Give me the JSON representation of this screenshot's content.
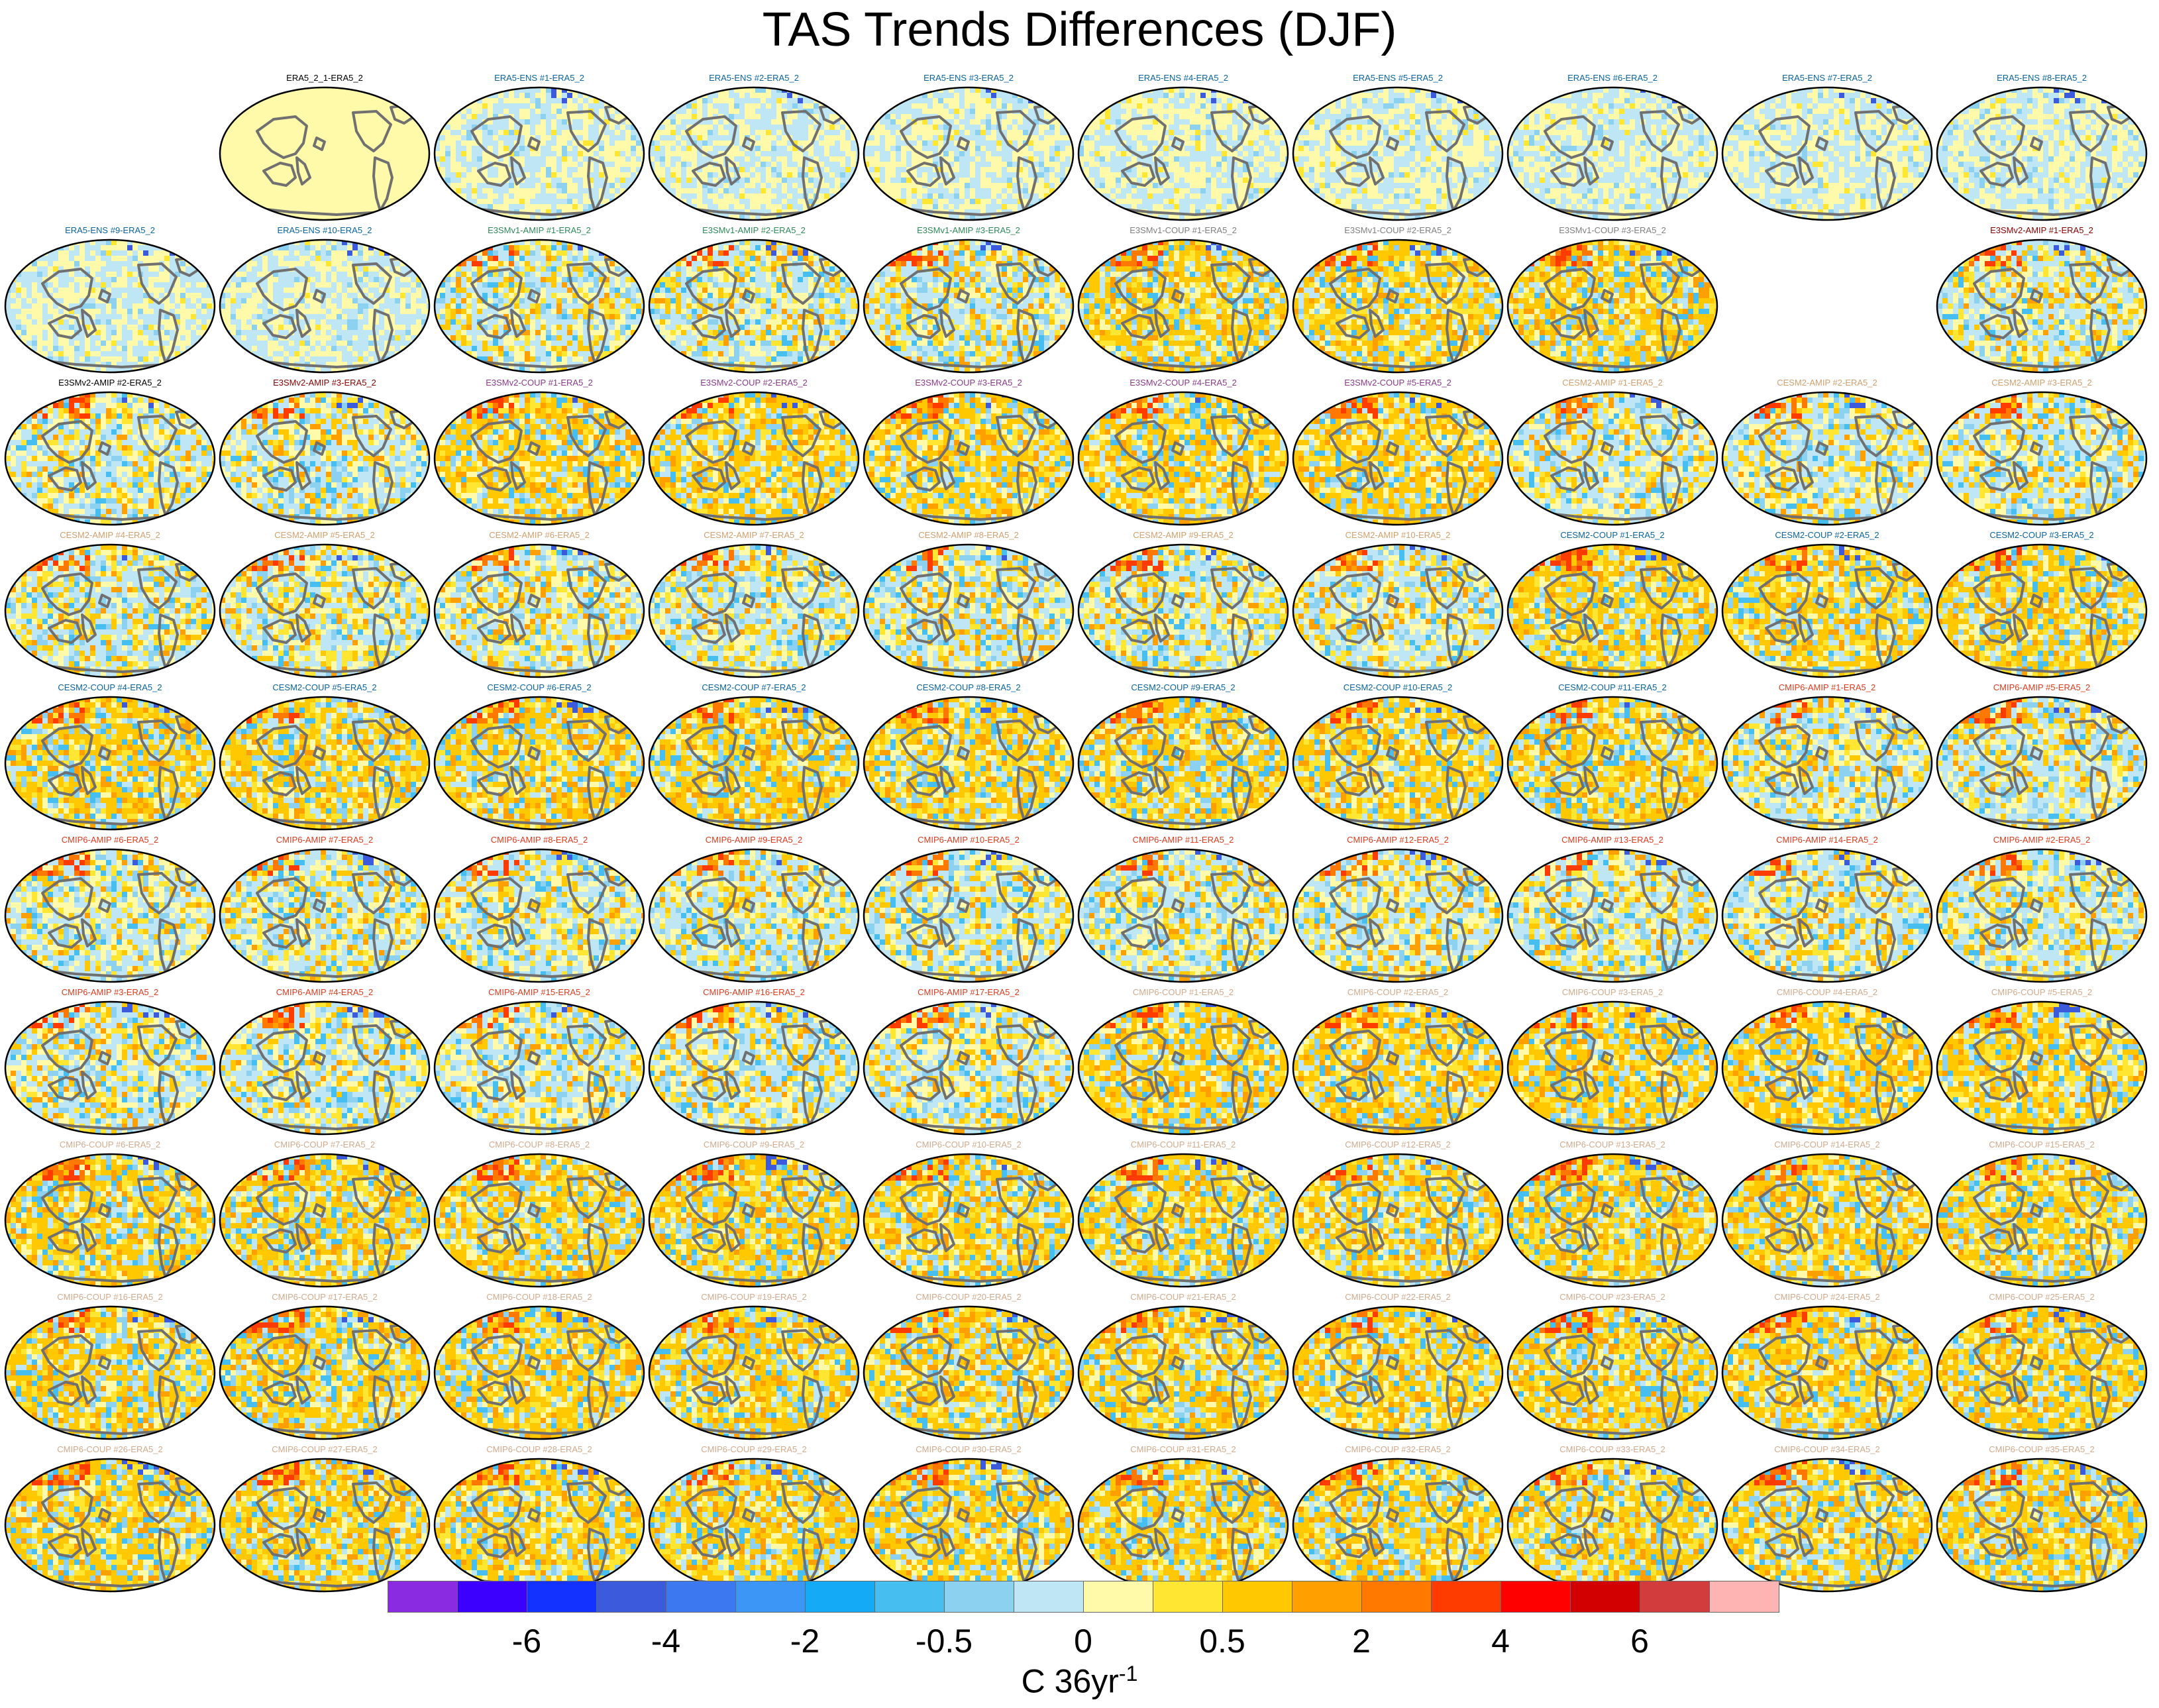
{
  "title": "TAS Trends Differences (DJF)",
  "chart_data": {
    "type": "heatmap",
    "title": "TAS Trends Differences (DJF)",
    "colorbar": {
      "tick_labels": [
        "-6",
        "-4",
        "-2",
        "-0.5",
        "0",
        "0.5",
        "2",
        "4",
        "6"
      ],
      "units_base": "C 36yr",
      "units_sup": "-1",
      "colors": [
        "#8a2be2",
        "#3c00ff",
        "#1432ff",
        "#3c5adc",
        "#3c78f0",
        "#3c96f5",
        "#14aaf5",
        "#46bef0",
        "#8cd2f0",
        "#bee6f5",
        "#fffaaa",
        "#ffe632",
        "#ffc800",
        "#ffa000",
        "#ff7800",
        "#ff3c00",
        "#ff0000",
        "#d20000",
        "#d23c3c",
        "#ffb4b4"
      ]
    },
    "panels": [
      {
        "row": 0,
        "col": 1,
        "label": "ERA5_2_1-ERA5_2",
        "label_color": "#000000",
        "style": "zero"
      },
      {
        "row": 0,
        "col": 2,
        "label": "ERA5-ENS    #1-ERA5_2",
        "label_color": "#0a64a0",
        "style": "ens"
      },
      {
        "row": 0,
        "col": 3,
        "label": "ERA5-ENS    #2-ERA5_2",
        "label_color": "#0a64a0",
        "style": "ens"
      },
      {
        "row": 0,
        "col": 4,
        "label": "ERA5-ENS    #3-ERA5_2",
        "label_color": "#0a64a0",
        "style": "ens"
      },
      {
        "row": 0,
        "col": 5,
        "label": "ERA5-ENS    #4-ERA5_2",
        "label_color": "#0a64a0",
        "style": "ens"
      },
      {
        "row": 0,
        "col": 6,
        "label": "ERA5-ENS    #5-ERA5_2",
        "label_color": "#0a64a0",
        "style": "ens"
      },
      {
        "row": 0,
        "col": 7,
        "label": "ERA5-ENS    #6-ERA5_2",
        "label_color": "#0a64a0",
        "style": "ens"
      },
      {
        "row": 0,
        "col": 8,
        "label": "ERA5-ENS    #7-ERA5_2",
        "label_color": "#0a64a0",
        "style": "ens"
      },
      {
        "row": 0,
        "col": 9,
        "label": "ERA5-ENS    #8-ERA5_2",
        "label_color": "#0a64a0",
        "style": "ens"
      },
      {
        "row": 1,
        "col": 0,
        "label": "ERA5-ENS    #9-ERA5_2",
        "label_color": "#0a64a0",
        "style": "ens"
      },
      {
        "row": 1,
        "col": 1,
        "label": "ERA5-ENS    #10-ERA5_2",
        "label_color": "#0a64a0",
        "style": "ens"
      },
      {
        "row": 1,
        "col": 2,
        "label": "E3SMv1-AMIP #1-ERA5_2",
        "label_color": "#2e8b57",
        "style": "amip"
      },
      {
        "row": 1,
        "col": 3,
        "label": "E3SMv1-AMIP #2-ERA5_2",
        "label_color": "#2e8b57",
        "style": "amip"
      },
      {
        "row": 1,
        "col": 4,
        "label": "E3SMv1-AMIP #3-ERA5_2",
        "label_color": "#2e8b57",
        "style": "amip"
      },
      {
        "row": 1,
        "col": 5,
        "label": "E3SMv1-COUP #1-ERA5_2",
        "label_color": "#808080",
        "style": "coup"
      },
      {
        "row": 1,
        "col": 6,
        "label": "E3SMv1-COUP #2-ERA5_2",
        "label_color": "#808080",
        "style": "coup"
      },
      {
        "row": 1,
        "col": 7,
        "label": "E3SMv1-COUP #3-ERA5_2",
        "label_color": "#808080",
        "style": "coup"
      },
      {
        "row": 1,
        "col": 9,
        "label": "E3SMv2-AMIP #1-ERA5_2",
        "label_color": "#8b0000",
        "style": "amip"
      },
      {
        "row": 2,
        "col": 0,
        "label": "E3SMv2-AMIP #2-ERA5_2",
        "label_color": "#000000",
        "style": "amip"
      },
      {
        "row": 2,
        "col": 1,
        "label": "E3SMv2-AMIP #3-ERA5_2",
        "label_color": "#8b0000",
        "style": "amip"
      },
      {
        "row": 2,
        "col": 2,
        "label": "E3SMv2-COUP #1-ERA5_2",
        "label_color": "#8b3a8b",
        "style": "coup"
      },
      {
        "row": 2,
        "col": 3,
        "label": "E3SMv2-COUP #2-ERA5_2",
        "label_color": "#8b3a8b",
        "style": "coup"
      },
      {
        "row": 2,
        "col": 4,
        "label": "E3SMv2-COUP #3-ERA5_2",
        "label_color": "#8b3a8b",
        "style": "coup"
      },
      {
        "row": 2,
        "col": 5,
        "label": "E3SMv2-COUP #4-ERA5_2",
        "label_color": "#8b3a8b",
        "style": "coup"
      },
      {
        "row": 2,
        "col": 6,
        "label": "E3SMv2-COUP #5-ERA5_2",
        "label_color": "#8b3a8b",
        "style": "coup"
      },
      {
        "row": 2,
        "col": 7,
        "label": "CESM2-AMIP  #1-ERA5_2",
        "label_color": "#d2a06e",
        "style": "amip"
      },
      {
        "row": 2,
        "col": 8,
        "label": "CESM2-AMIP  #2-ERA5_2",
        "label_color": "#d2a06e",
        "style": "amip"
      },
      {
        "row": 2,
        "col": 9,
        "label": "CESM2-AMIP  #3-ERA5_2",
        "label_color": "#d2a06e",
        "style": "amip"
      },
      {
        "row": 3,
        "col": 0,
        "label": "CESM2-AMIP  #4-ERA5_2",
        "label_color": "#d2a06e",
        "style": "amip"
      },
      {
        "row": 3,
        "col": 1,
        "label": "CESM2-AMIP  #5-ERA5_2",
        "label_color": "#d2a06e",
        "style": "amip"
      },
      {
        "row": 3,
        "col": 2,
        "label": "CESM2-AMIP  #6-ERA5_2",
        "label_color": "#d2a06e",
        "style": "amip"
      },
      {
        "row": 3,
        "col": 3,
        "label": "CESM2-AMIP  #7-ERA5_2",
        "label_color": "#d2a06e",
        "style": "amip"
      },
      {
        "row": 3,
        "col": 4,
        "label": "CESM2-AMIP  #8-ERA5_2",
        "label_color": "#d2a06e",
        "style": "amip"
      },
      {
        "row": 3,
        "col": 5,
        "label": "CESM2-AMIP  #9-ERA5_2",
        "label_color": "#d2a06e",
        "style": "amip"
      },
      {
        "row": 3,
        "col": 6,
        "label": "CESM2-AMIP  #10-ERA5_2",
        "label_color": "#d2a06e",
        "style": "amip"
      },
      {
        "row": 3,
        "col": 7,
        "label": "CESM2-COUP  #1-ERA5_2",
        "label_color": "#0a64a0",
        "style": "coup"
      },
      {
        "row": 3,
        "col": 8,
        "label": "CESM2-COUP  #2-ERA5_2",
        "label_color": "#0a64a0",
        "style": "coup"
      },
      {
        "row": 3,
        "col": 9,
        "label": "CESM2-COUP  #3-ERA5_2",
        "label_color": "#0a64a0",
        "style": "coup"
      },
      {
        "row": 4,
        "col": 0,
        "label": "CESM2-COUP  #4-ERA5_2",
        "label_color": "#0a64a0",
        "style": "coup"
      },
      {
        "row": 4,
        "col": 1,
        "label": "CESM2-COUP  #5-ERA5_2",
        "label_color": "#0a64a0",
        "style": "coup"
      },
      {
        "row": 4,
        "col": 2,
        "label": "CESM2-COUP  #6-ERA5_2",
        "label_color": "#0a64a0",
        "style": "coup"
      },
      {
        "row": 4,
        "col": 3,
        "label": "CESM2-COUP  #7-ERA5_2",
        "label_color": "#0a64a0",
        "style": "coup"
      },
      {
        "row": 4,
        "col": 4,
        "label": "CESM2-COUP  #8-ERA5_2",
        "label_color": "#0a64a0",
        "style": "coup"
      },
      {
        "row": 4,
        "col": 5,
        "label": "CESM2-COUP  #9-ERA5_2",
        "label_color": "#0a64a0",
        "style": "coup"
      },
      {
        "row": 4,
        "col": 6,
        "label": "CESM2-COUP  #10-ERA5_2",
        "label_color": "#0a64a0",
        "style": "coup"
      },
      {
        "row": 4,
        "col": 7,
        "label": "CESM2-COUP  #11-ERA5_2",
        "label_color": "#0a64a0",
        "style": "coup"
      },
      {
        "row": 4,
        "col": 8,
        "label": "CMIP6-AMIP  #1-ERA5_2",
        "label_color": "#dc3c1e",
        "style": "amip"
      },
      {
        "row": 4,
        "col": 9,
        "label": "CMIP6-AMIP  #5-ERA5_2",
        "label_color": "#dc3c1e",
        "style": "amip"
      },
      {
        "row": 5,
        "col": 0,
        "label": "CMIP6-AMIP  #6-ERA5_2",
        "label_color": "#dc3c1e",
        "style": "amip"
      },
      {
        "row": 5,
        "col": 1,
        "label": "CMIP6-AMIP  #7-ERA5_2",
        "label_color": "#dc3c1e",
        "style": "amip"
      },
      {
        "row": 5,
        "col": 2,
        "label": "CMIP6-AMIP  #8-ERA5_2",
        "label_color": "#dc3c1e",
        "style": "amip"
      },
      {
        "row": 5,
        "col": 3,
        "label": "CMIP6-AMIP  #9-ERA5_2",
        "label_color": "#dc3c1e",
        "style": "amip"
      },
      {
        "row": 5,
        "col": 4,
        "label": "CMIP6-AMIP  #10-ERA5_2",
        "label_color": "#dc3c1e",
        "style": "amip"
      },
      {
        "row": 5,
        "col": 5,
        "label": "CMIP6-AMIP  #11-ERA5_2",
        "label_color": "#dc3c1e",
        "style": "amip"
      },
      {
        "row": 5,
        "col": 6,
        "label": "CMIP6-AMIP  #12-ERA5_2",
        "label_color": "#dc3c1e",
        "style": "amip"
      },
      {
        "row": 5,
        "col": 7,
        "label": "CMIP6-AMIP  #13-ERA5_2",
        "label_color": "#dc3c1e",
        "style": "amip"
      },
      {
        "row": 5,
        "col": 8,
        "label": "CMIP6-AMIP  #14-ERA5_2",
        "label_color": "#dc3c1e",
        "style": "amip"
      },
      {
        "row": 5,
        "col": 9,
        "label": "CMIP6-AMIP  #2-ERA5_2",
        "label_color": "#dc3c1e",
        "style": "amip"
      },
      {
        "row": 6,
        "col": 0,
        "label": "CMIP6-AMIP  #3-ERA5_2",
        "label_color": "#dc3c1e",
        "style": "amip"
      },
      {
        "row": 6,
        "col": 1,
        "label": "CMIP6-AMIP  #4-ERA5_2",
        "label_color": "#dc3c1e",
        "style": "amip"
      },
      {
        "row": 6,
        "col": 2,
        "label": "CMIP6-AMIP  #15-ERA5_2",
        "label_color": "#dc3c1e",
        "style": "amip"
      },
      {
        "row": 6,
        "col": 3,
        "label": "CMIP6-AMIP  #16-ERA5_2",
        "label_color": "#dc3c1e",
        "style": "amip"
      },
      {
        "row": 6,
        "col": 4,
        "label": "CMIP6-AMIP  #17-ERA5_2",
        "label_color": "#dc3c1e",
        "style": "amip"
      },
      {
        "row": 6,
        "col": 5,
        "label": "CMIP6-COUP  #1-ERA5_2",
        "label_color": "#d2aa8c",
        "style": "coup"
      },
      {
        "row": 6,
        "col": 6,
        "label": "CMIP6-COUP  #2-ERA5_2",
        "label_color": "#d2aa8c",
        "style": "coup"
      },
      {
        "row": 6,
        "col": 7,
        "label": "CMIP6-COUP  #3-ERA5_2",
        "label_color": "#d2aa8c",
        "style": "coup"
      },
      {
        "row": 6,
        "col": 8,
        "label": "CMIP6-COUP  #4-ERA5_2",
        "label_color": "#d2aa8c",
        "style": "coup"
      },
      {
        "row": 6,
        "col": 9,
        "label": "CMIP6-COUP  #5-ERA5_2",
        "label_color": "#d2aa8c",
        "style": "coup"
      },
      {
        "row": 7,
        "col": 0,
        "label": "CMIP6-COUP  #6-ERA5_2",
        "label_color": "#d2aa8c",
        "style": "coup"
      },
      {
        "row": 7,
        "col": 1,
        "label": "CMIP6-COUP  #7-ERA5_2",
        "label_color": "#d2aa8c",
        "style": "coup"
      },
      {
        "row": 7,
        "col": 2,
        "label": "CMIP6-COUP  #8-ERA5_2",
        "label_color": "#d2aa8c",
        "style": "coup"
      },
      {
        "row": 7,
        "col": 3,
        "label": "CMIP6-COUP  #9-ERA5_2",
        "label_color": "#d2aa8c",
        "style": "coup"
      },
      {
        "row": 7,
        "col": 4,
        "label": "CMIP6-COUP  #10-ERA5_2",
        "label_color": "#d2aa8c",
        "style": "coup"
      },
      {
        "row": 7,
        "col": 5,
        "label": "CMIP6-COUP  #11-ERA5_2",
        "label_color": "#d2aa8c",
        "style": "coup"
      },
      {
        "row": 7,
        "col": 6,
        "label": "CMIP6-COUP  #12-ERA5_2",
        "label_color": "#d2aa8c",
        "style": "coup"
      },
      {
        "row": 7,
        "col": 7,
        "label": "CMIP6-COUP  #13-ERA5_2",
        "label_color": "#d2aa8c",
        "style": "coup"
      },
      {
        "row": 7,
        "col": 8,
        "label": "CMIP6-COUP  #14-ERA5_2",
        "label_color": "#d2aa8c",
        "style": "coup"
      },
      {
        "row": 7,
        "col": 9,
        "label": "CMIP6-COUP  #15-ERA5_2",
        "label_color": "#d2aa8c",
        "style": "coup"
      },
      {
        "row": 8,
        "col": 0,
        "label": "CMIP6-COUP  #16-ERA5_2",
        "label_color": "#d2aa8c",
        "style": "coup"
      },
      {
        "row": 8,
        "col": 1,
        "label": "CMIP6-COUP  #17-ERA5_2",
        "label_color": "#d2aa8c",
        "style": "coup"
      },
      {
        "row": 8,
        "col": 2,
        "label": "CMIP6-COUP  #18-ERA5_2",
        "label_color": "#d2aa8c",
        "style": "coup"
      },
      {
        "row": 8,
        "col": 3,
        "label": "CMIP6-COUP  #19-ERA5_2",
        "label_color": "#d2aa8c",
        "style": "coup"
      },
      {
        "row": 8,
        "col": 4,
        "label": "CMIP6-COUP  #20-ERA5_2",
        "label_color": "#d2aa8c",
        "style": "coup"
      },
      {
        "row": 8,
        "col": 5,
        "label": "CMIP6-COUP  #21-ERA5_2",
        "label_color": "#d2aa8c",
        "style": "coup"
      },
      {
        "row": 8,
        "col": 6,
        "label": "CMIP6-COUP  #22-ERA5_2",
        "label_color": "#d2aa8c",
        "style": "coup"
      },
      {
        "row": 8,
        "col": 7,
        "label": "CMIP6-COUP  #23-ERA5_2",
        "label_color": "#d2aa8c",
        "style": "coup"
      },
      {
        "row": 8,
        "col": 8,
        "label": "CMIP6-COUP  #24-ERA5_2",
        "label_color": "#d2aa8c",
        "style": "coup"
      },
      {
        "row": 8,
        "col": 9,
        "label": "CMIP6-COUP  #25-ERA5_2",
        "label_color": "#d2aa8c",
        "style": "coup"
      },
      {
        "row": 9,
        "col": 0,
        "label": "CMIP6-COUP  #26-ERA5_2",
        "label_color": "#d2aa8c",
        "style": "coup"
      },
      {
        "row": 9,
        "col": 1,
        "label": "CMIP6-COUP  #27-ERA5_2",
        "label_color": "#d2aa8c",
        "style": "coup"
      },
      {
        "row": 9,
        "col": 2,
        "label": "CMIP6-COUP  #28-ERA5_2",
        "label_color": "#d2aa8c",
        "style": "coup"
      },
      {
        "row": 9,
        "col": 3,
        "label": "CMIP6-COUP  #29-ERA5_2",
        "label_color": "#d2aa8c",
        "style": "coup"
      },
      {
        "row": 9,
        "col": 4,
        "label": "CMIP6-COUP  #30-ERA5_2",
        "label_color": "#d2aa8c",
        "style": "coup"
      },
      {
        "row": 9,
        "col": 5,
        "label": "CMIP6-COUP  #31-ERA5_2",
        "label_color": "#d2aa8c",
        "style": "coup"
      },
      {
        "row": 9,
        "col": 6,
        "label": "CMIP6-COUP  #32-ERA5_2",
        "label_color": "#d2aa8c",
        "style": "coup"
      },
      {
        "row": 9,
        "col": 7,
        "label": "CMIP6-COUP  #33-ERA5_2",
        "label_color": "#d2aa8c",
        "style": "coup"
      },
      {
        "row": 9,
        "col": 8,
        "label": "CMIP6-COUP  #34-ERA5_2",
        "label_color": "#d2aa8c",
        "style": "coup"
      },
      {
        "row": 9,
        "col": 9,
        "label": "CMIP6-COUP  #35-ERA5_2",
        "label_color": "#d2aa8c",
        "style": "coup"
      }
    ]
  }
}
